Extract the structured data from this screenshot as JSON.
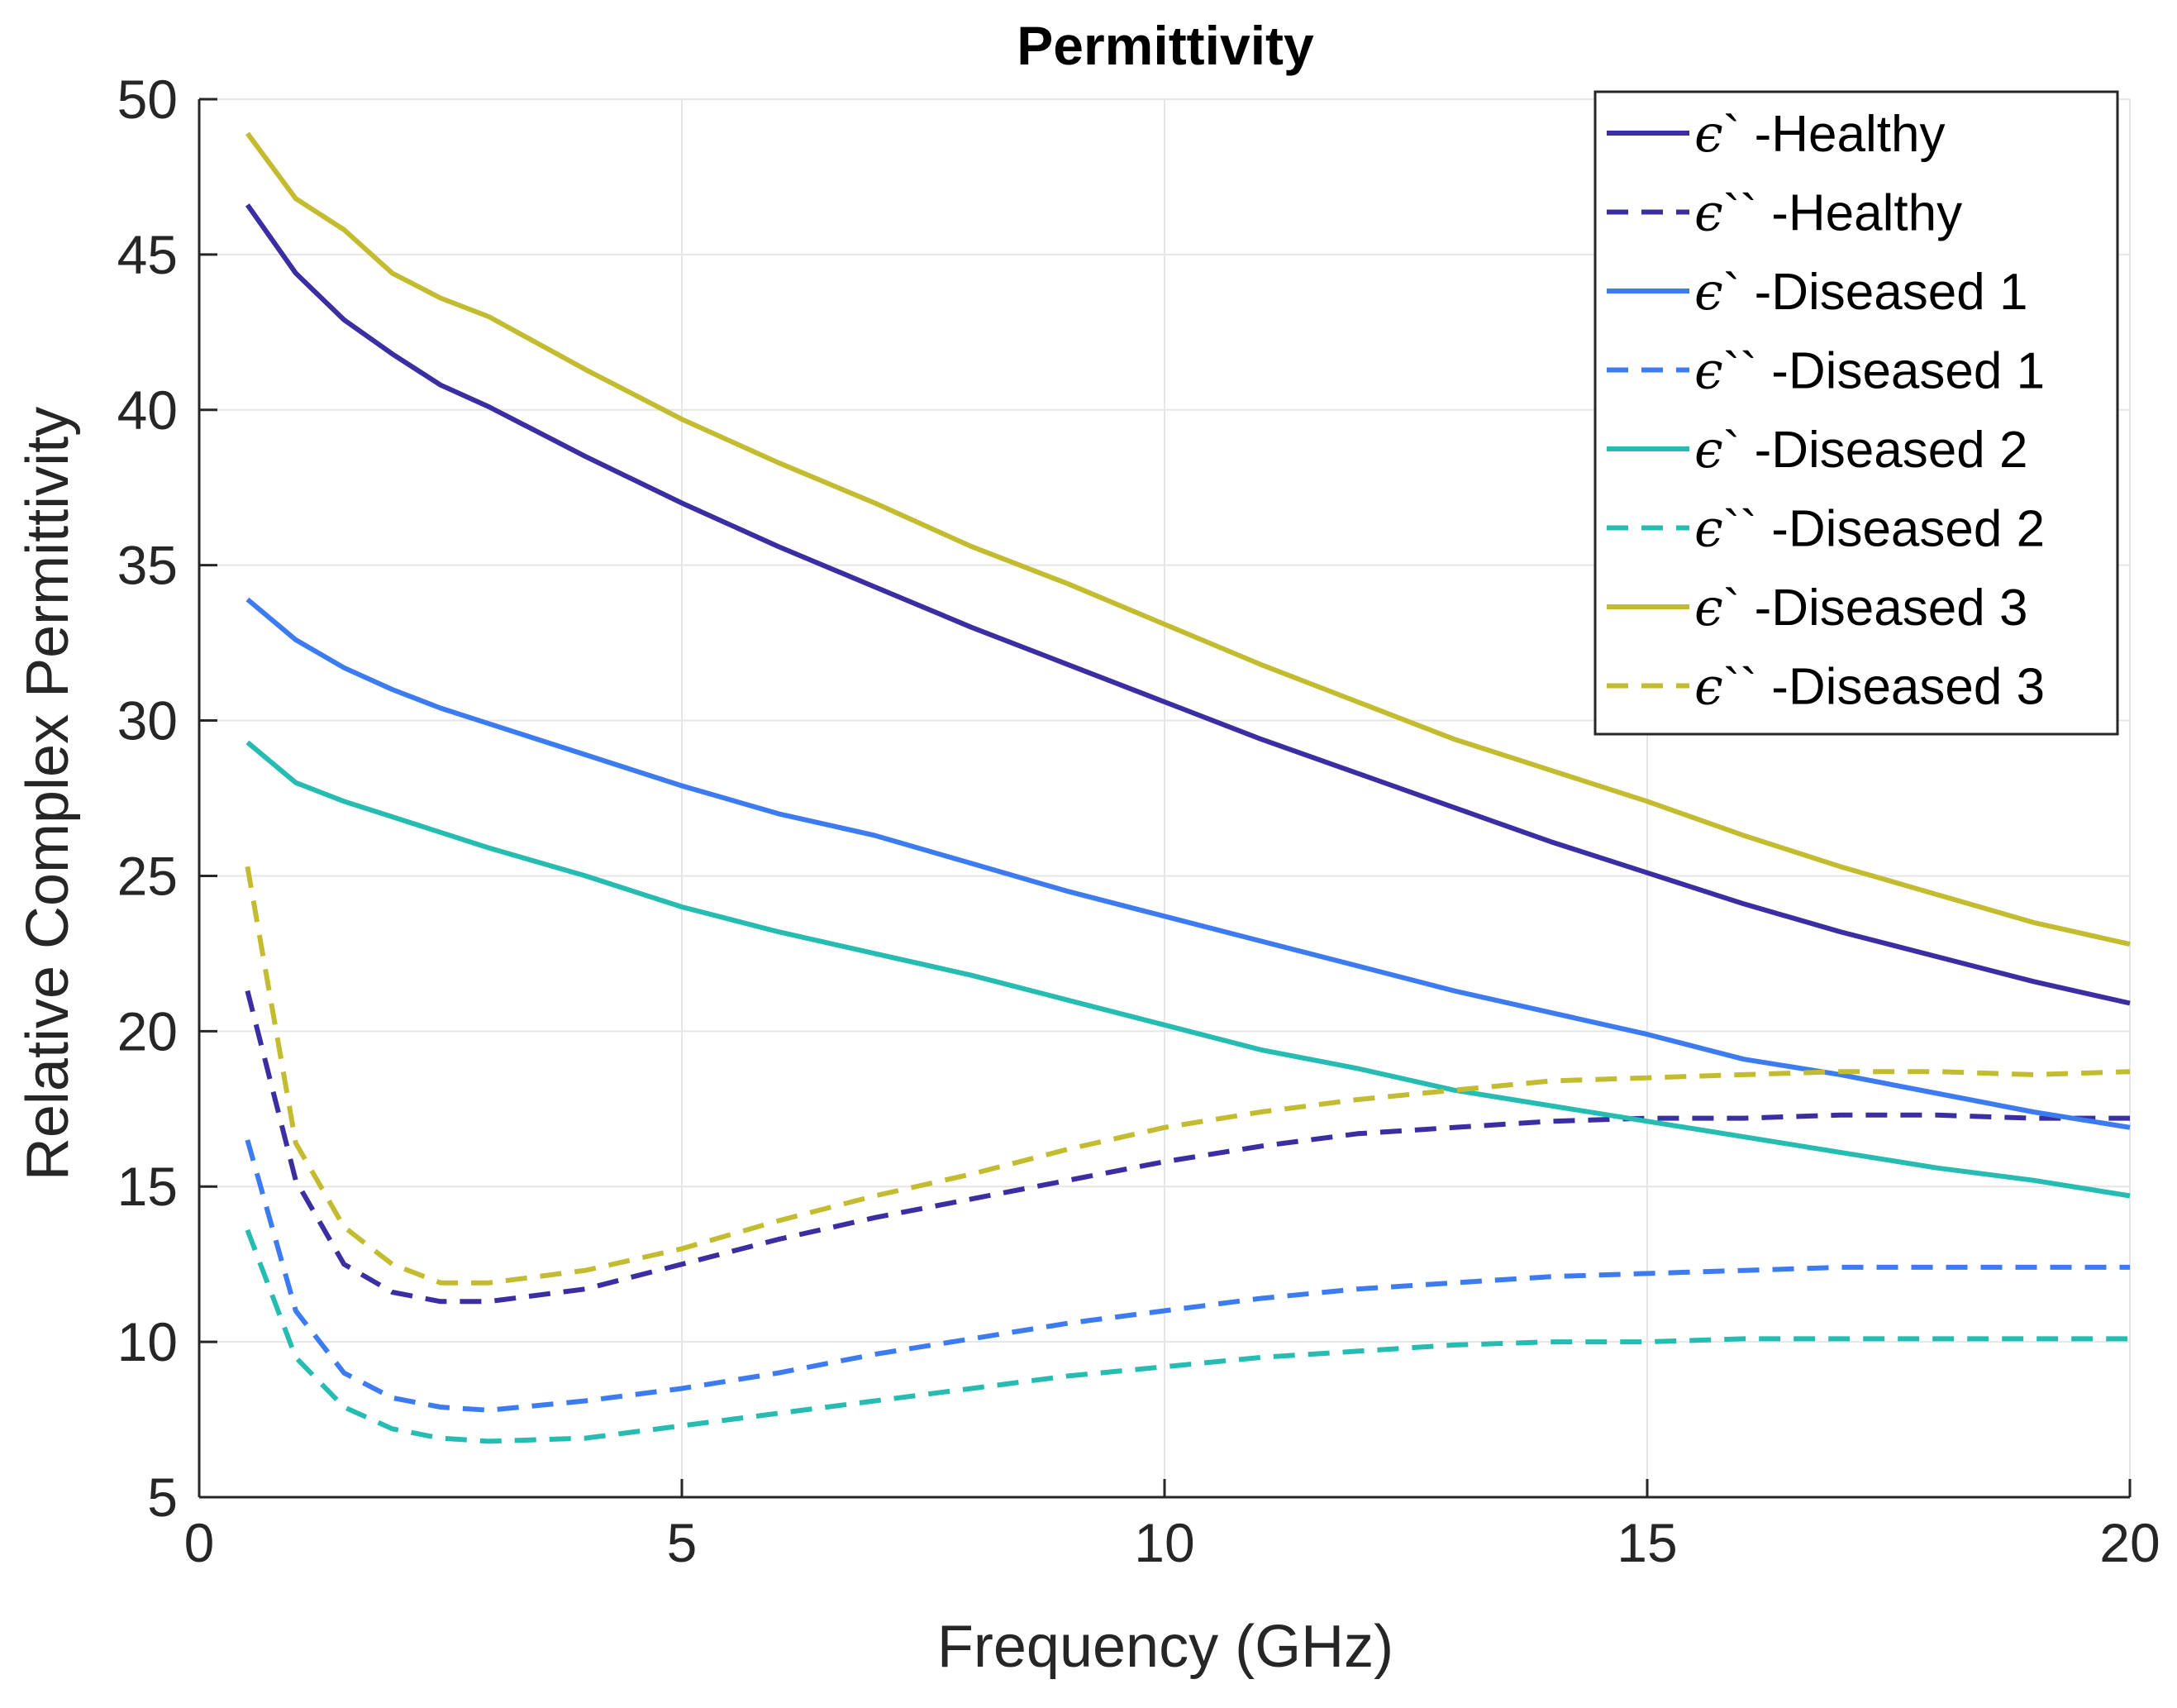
{
  "chart_data": {
    "type": "line",
    "title": "Permittivity",
    "xlabel": "Frequency (GHz)",
    "ylabel": "Relative Complex Permittivity",
    "xlim": [
      0,
      20
    ],
    "ylim": [
      5,
      50
    ],
    "xticks": [
      0,
      5,
      10,
      15,
      20
    ],
    "yticks": [
      5,
      10,
      15,
      20,
      25,
      30,
      35,
      40,
      45,
      50
    ],
    "grid": true,
    "legend_position": "top-right",
    "x": [
      0.5,
      1,
      1.5,
      2,
      2.5,
      3,
      4,
      5,
      6,
      7,
      8,
      9,
      10,
      11,
      12,
      13,
      14,
      15,
      16,
      17,
      18,
      19,
      20
    ],
    "series": [
      {
        "name": "ϵ` -Healthy",
        "color": "#3a2ea2",
        "dash": false,
        "values": [
          46.6,
          44.4,
          42.9,
          41.8,
          40.8,
          40.1,
          38.5,
          37.0,
          35.6,
          34.3,
          33.0,
          31.8,
          30.6,
          29.4,
          28.3,
          27.2,
          26.1,
          25.1,
          24.1,
          23.2,
          22.4,
          21.6,
          20.9
        ]
      },
      {
        "name": "ϵ`` -Healthy",
        "color": "#3a2ea2",
        "dash": true,
        "values": [
          21.3,
          15.2,
          12.5,
          11.6,
          11.3,
          11.3,
          11.7,
          12.5,
          13.3,
          14.0,
          14.6,
          15.2,
          15.8,
          16.3,
          16.7,
          16.9,
          17.1,
          17.2,
          17.2,
          17.3,
          17.3,
          17.2,
          17.2
        ]
      },
      {
        "name": "ϵ` -Diseased 1",
        "color": "#3d7cf0",
        "dash": false,
        "values": [
          33.9,
          32.6,
          31.7,
          31.0,
          30.4,
          29.9,
          28.9,
          27.9,
          27.0,
          26.3,
          25.4,
          24.5,
          23.7,
          22.9,
          22.1,
          21.3,
          20.6,
          19.9,
          19.1,
          18.6,
          18.0,
          17.4,
          16.9
        ]
      },
      {
        "name": "ϵ`` -Diseased 1",
        "color": "#3d7cf0",
        "dash": true,
        "values": [
          16.5,
          11.0,
          9.0,
          8.2,
          7.9,
          7.8,
          8.1,
          8.5,
          9.0,
          9.6,
          10.1,
          10.6,
          11.0,
          11.4,
          11.7,
          11.9,
          12.1,
          12.2,
          12.3,
          12.4,
          12.4,
          12.4,
          12.4
        ]
      },
      {
        "name": "ϵ` -Diseased 2",
        "color": "#26bcb2",
        "dash": false,
        "values": [
          29.3,
          28.0,
          27.4,
          26.9,
          26.4,
          25.9,
          25.0,
          24.0,
          23.2,
          22.5,
          21.8,
          21.0,
          20.2,
          19.4,
          18.8,
          18.1,
          17.6,
          17.1,
          16.6,
          16.1,
          15.6,
          15.2,
          14.7
        ]
      },
      {
        "name": "ϵ`` -Diseased 2",
        "color": "#26bcb2",
        "dash": true,
        "values": [
          13.6,
          9.5,
          7.9,
          7.2,
          6.9,
          6.8,
          6.9,
          7.3,
          7.7,
          8.1,
          8.5,
          8.9,
          9.2,
          9.5,
          9.7,
          9.9,
          10.0,
          10.0,
          10.1,
          10.1,
          10.1,
          10.1,
          10.1
        ]
      },
      {
        "name": "ϵ` -Diseased 3",
        "color": "#c4bc30",
        "dash": false,
        "values": [
          48.9,
          46.8,
          45.8,
          44.4,
          43.6,
          43.0,
          41.3,
          39.7,
          38.3,
          37.0,
          35.6,
          34.4,
          33.1,
          31.8,
          30.6,
          29.4,
          28.4,
          27.4,
          26.3,
          25.3,
          24.4,
          23.5,
          22.8
        ]
      },
      {
        "name": "ϵ`` -Diseased 3",
        "color": "#c4bc30",
        "dash": true,
        "values": [
          25.3,
          16.4,
          13.7,
          12.5,
          11.9,
          11.9,
          12.3,
          13.0,
          13.9,
          14.7,
          15.4,
          16.2,
          16.9,
          17.4,
          17.8,
          18.1,
          18.4,
          18.5,
          18.6,
          18.7,
          18.7,
          18.6,
          18.7
        ]
      }
    ]
  }
}
